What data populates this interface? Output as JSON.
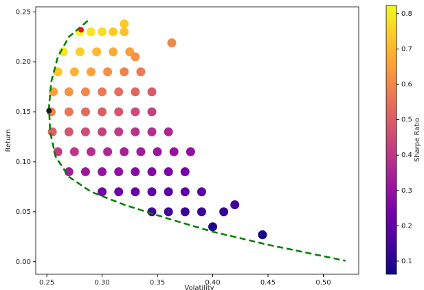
{
  "chart_data": {
    "type": "scatter",
    "xlabel": "Volatility",
    "ylabel": "Return",
    "colorbar_label": "Sharpe Ratio",
    "colormap": "plasma",
    "clim": [
      0.063,
      0.823
    ],
    "cticks": [
      0.1,
      0.2,
      0.3,
      0.4,
      0.5,
      0.6,
      0.7,
      0.8
    ],
    "xlim": [
      0.24,
      0.532
    ],
    "ylim": [
      -0.0125,
      0.255
    ],
    "xticks": [
      {
        "value": 0.25,
        "label": "0.25"
      },
      {
        "value": 0.3,
        "label": "0.30"
      },
      {
        "value": 0.35,
        "label": "0.35"
      },
      {
        "value": 0.4,
        "label": "0.40"
      },
      {
        "value": 0.45,
        "label": "0.45"
      },
      {
        "value": 0.5,
        "label": "0.50"
      }
    ],
    "yticks": [
      {
        "value": 0,
        "label": "0.00"
      },
      {
        "value": 0.05,
        "label": "0.05"
      },
      {
        "value": 0.1,
        "label": "0.10"
      },
      {
        "value": 0.15,
        "label": "0.15"
      },
      {
        "value": 0.2,
        "label": "0.20"
      },
      {
        "value": 0.25,
        "label": "0.25"
      }
    ],
    "series": [
      {
        "type": "scatter",
        "x": [
          0.28,
          0.29,
          0.3,
          0.31,
          0.32,
          0.265,
          0.28,
          0.295,
          0.31,
          0.325,
          0.26,
          0.275,
          0.29,
          0.305,
          0.32,
          0.335,
          0.256,
          0.27,
          0.285,
          0.3,
          0.315,
          0.33,
          0.345,
          0.254,
          0.27,
          0.285,
          0.3,
          0.315,
          0.33,
          0.345,
          0.255,
          0.27,
          0.285,
          0.3,
          0.315,
          0.33,
          0.345,
          0.36,
          0.26,
          0.275,
          0.29,
          0.305,
          0.32,
          0.335,
          0.35,
          0.365,
          0.38,
          0.27,
          0.285,
          0.3,
          0.315,
          0.33,
          0.345,
          0.36,
          0.375,
          0.3,
          0.315,
          0.33,
          0.345,
          0.36,
          0.375,
          0.39,
          0.345,
          0.36,
          0.375,
          0.39,
          0.41,
          0.363,
          0.445,
          0.42,
          0.4,
          0.32,
          0.33
        ],
        "values": [
          0.23,
          0.23,
          0.23,
          0.23,
          0.23,
          0.21,
          0.21,
          0.21,
          0.21,
          0.21,
          0.19,
          0.19,
          0.19,
          0.19,
          0.19,
          0.19,
          0.17,
          0.17,
          0.17,
          0.17,
          0.17,
          0.17,
          0.17,
          0.15,
          0.15,
          0.15,
          0.15,
          0.15,
          0.15,
          0.15,
          0.13,
          0.13,
          0.13,
          0.13,
          0.13,
          0.13,
          0.13,
          0.13,
          0.11,
          0.11,
          0.11,
          0.11,
          0.11,
          0.11,
          0.11,
          0.11,
          0.11,
          0.09,
          0.09,
          0.09,
          0.09,
          0.09,
          0.09,
          0.09,
          0.09,
          0.07,
          0.07,
          0.07,
          0.07,
          0.07,
          0.07,
          0.07,
          0.05,
          0.05,
          0.05,
          0.05,
          0.05,
          0.219,
          0.027,
          0.057,
          0.035,
          0.238,
          0.205
        ],
        "c": [
          0.82,
          0.79,
          0.77,
          0.74,
          0.72,
          0.79,
          0.75,
          0.71,
          0.68,
          0.65,
          0.73,
          0.69,
          0.66,
          0.62,
          0.59,
          0.57,
          0.66,
          0.63,
          0.6,
          0.57,
          0.54,
          0.52,
          0.49,
          0.59,
          0.56,
          0.53,
          0.5,
          0.48,
          0.45,
          0.43,
          0.51,
          0.48,
          0.46,
          0.43,
          0.41,
          0.39,
          0.38,
          0.36,
          0.42,
          0.4,
          0.38,
          0.36,
          0.34,
          0.33,
          0.31,
          0.3,
          0.29,
          0.33,
          0.32,
          0.3,
          0.29,
          0.27,
          0.26,
          0.25,
          0.24,
          0.23,
          0.22,
          0.21,
          0.2,
          0.19,
          0.19,
          0.18,
          0.14,
          0.14,
          0.13,
          0.13,
          0.12,
          0.6,
          0.07,
          0.14,
          0.09,
          0.74,
          0.62
        ]
      },
      {
        "type": "line",
        "color": "#008000",
        "x": [
          0.287,
          0.27,
          0.26,
          0.254,
          0.252,
          0.253,
          0.258,
          0.27,
          0.29,
          0.32,
          0.36,
          0.4,
          0.45,
          0.52
        ],
        "values": [
          0.241,
          0.225,
          0.205,
          0.18,
          0.155,
          0.13,
          0.105,
          0.085,
          0.07,
          0.057,
          0.043,
          0.03,
          0.017,
          0.001
        ]
      },
      {
        "type": "point",
        "color": "#e8141c",
        "x": [
          0.281
        ],
        "values": [
          0.232
        ]
      },
      {
        "type": "point",
        "color": "#1a1a1a",
        "x": [
          0.252
        ],
        "values": [
          0.151
        ]
      }
    ]
  }
}
